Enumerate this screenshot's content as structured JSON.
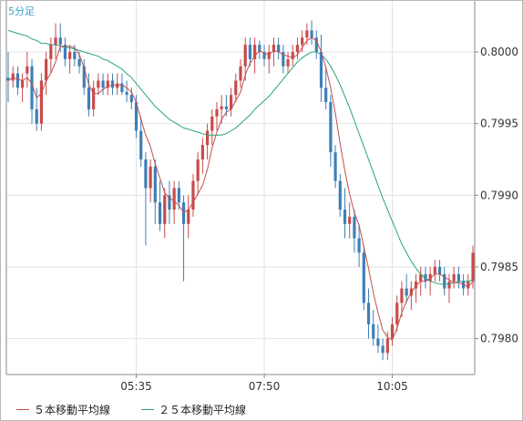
{
  "timeframe_label": "5分足",
  "legend": [
    {
      "label": "５本移動平均線",
      "color": "#c44e4e"
    },
    {
      "label": "２５本移動平均線",
      "color": "#2aa37a"
    }
  ],
  "colors": {
    "up": "#c84b4b",
    "down": "#3d7fb8",
    "grid": "#e2e2e2",
    "axis": "#888888"
  },
  "chart_data": {
    "type": "candlestick",
    "y_ticks": [
      "0.8000",
      "0.7995",
      "0.7990",
      "0.7985",
      "0.7980"
    ],
    "x_ticks": [
      "05:35",
      "07:50",
      "10:05"
    ],
    "ylim": [
      0.79773,
      0.8005
    ],
    "grid": true,
    "candles": [
      [
        0.79982,
        0.8,
        0.79965,
        0.7998
      ],
      [
        0.7998,
        0.7999,
        0.79975,
        0.79985
      ],
      [
        0.79985,
        0.7999,
        0.7997,
        0.79975
      ],
      [
        0.79975,
        0.79985,
        0.79965,
        0.7998
      ],
      [
        0.79985,
        0.8,
        0.79975,
        0.7999
      ],
      [
        0.7999,
        0.79995,
        0.7995,
        0.7996
      ],
      [
        0.7996,
        0.79975,
        0.79945,
        0.7995
      ],
      [
        0.7995,
        0.79985,
        0.79945,
        0.7998
      ],
      [
        0.7998,
        0.8,
        0.7997,
        0.79995
      ],
      [
        0.79995,
        0.8001,
        0.79985,
        0.80005
      ],
      [
        0.80005,
        0.8002,
        0.79995,
        0.8001
      ],
      [
        0.8001,
        0.8002,
        0.8,
        0.80005
      ],
      [
        0.80005,
        0.8001,
        0.7999,
        0.79995
      ],
      [
        0.79995,
        0.80005,
        0.79985,
        0.8
      ],
      [
        0.8,
        0.80005,
        0.7999,
        0.79995
      ],
      [
        0.79995,
        0.8,
        0.79985,
        0.7999
      ],
      [
        0.7999,
        0.79995,
        0.7997,
        0.79975
      ],
      [
        0.79975,
        0.79985,
        0.79955,
        0.7996
      ],
      [
        0.7996,
        0.7998,
        0.79955,
        0.79975
      ],
      [
        0.79975,
        0.79985,
        0.7997,
        0.7998
      ],
      [
        0.7998,
        0.79985,
        0.7997,
        0.79975
      ],
      [
        0.79975,
        0.79985,
        0.7997,
        0.7998
      ],
      [
        0.7998,
        0.79985,
        0.7997,
        0.79975
      ],
      [
        0.79975,
        0.79985,
        0.7997,
        0.79978
      ],
      [
        0.79978,
        0.79985,
        0.7997,
        0.79972
      ],
      [
        0.79972,
        0.7998,
        0.79965,
        0.7997
      ],
      [
        0.7997,
        0.79975,
        0.7996,
        0.79965
      ],
      [
        0.79965,
        0.7997,
        0.7994,
        0.79945
      ],
      [
        0.79945,
        0.79955,
        0.7992,
        0.79925
      ],
      [
        0.79925,
        0.7993,
        0.79865,
        0.79905
      ],
      [
        0.79905,
        0.79925,
        0.79895,
        0.7992
      ],
      [
        0.7992,
        0.79925,
        0.7988,
        0.79895
      ],
      [
        0.79895,
        0.7991,
        0.79875,
        0.7988
      ],
      [
        0.7988,
        0.79905,
        0.7987,
        0.799
      ],
      [
        0.799,
        0.7991,
        0.7988,
        0.7989
      ],
      [
        0.7989,
        0.7991,
        0.7988,
        0.79905
      ],
      [
        0.79905,
        0.7991,
        0.7989,
        0.79895
      ],
      [
        0.79895,
        0.799,
        0.7984,
        0.7988
      ],
      [
        0.7988,
        0.799,
        0.7987,
        0.7989
      ],
      [
        0.7989,
        0.79915,
        0.79885,
        0.7991
      ],
      [
        0.7991,
        0.7993,
        0.799,
        0.79925
      ],
      [
        0.79925,
        0.7994,
        0.79915,
        0.79935
      ],
      [
        0.79935,
        0.7995,
        0.79925,
        0.79945
      ],
      [
        0.79945,
        0.7996,
        0.79935,
        0.79955
      ],
      [
        0.79955,
        0.79965,
        0.79945,
        0.7996
      ],
      [
        0.7996,
        0.7997,
        0.7995,
        0.79962
      ],
      [
        0.79962,
        0.7997,
        0.79955,
        0.7996
      ],
      [
        0.7996,
        0.79975,
        0.79955,
        0.7997
      ],
      [
        0.7997,
        0.79985,
        0.79965,
        0.7998
      ],
      [
        0.7998,
        0.79995,
        0.79975,
        0.7999
      ],
      [
        0.7999,
        0.8001,
        0.7998,
        0.80005
      ],
      [
        0.80005,
        0.8001,
        0.7999,
        0.79995
      ],
      [
        0.79995,
        0.8001,
        0.79985,
        0.80005
      ],
      [
        0.80005,
        0.80008,
        0.79995,
        0.8
      ],
      [
        0.8,
        0.80005,
        0.7999,
        0.79995
      ],
      [
        0.79995,
        0.80005,
        0.79985,
        0.8
      ],
      [
        0.8,
        0.8001,
        0.7999,
        0.80005
      ],
      [
        0.80005,
        0.8001,
        0.79995,
        0.8
      ],
      [
        0.8,
        0.80005,
        0.79985,
        0.7999
      ],
      [
        0.7999,
        0.8,
        0.79985,
        0.79995
      ],
      [
        0.79995,
        0.80005,
        0.7999,
        0.8
      ],
      [
        0.8,
        0.8001,
        0.79995,
        0.80005
      ],
      [
        0.80005,
        0.80015,
        0.8,
        0.8001
      ],
      [
        0.8001,
        0.8002,
        0.80005,
        0.80015
      ],
      [
        0.80015,
        0.80022,
        0.80005,
        0.8001
      ],
      [
        0.8001,
        0.80015,
        0.79995,
        0.8
      ],
      [
        0.8,
        0.80012,
        0.79965,
        0.79975
      ],
      [
        0.79975,
        0.7999,
        0.7996,
        0.79965
      ],
      [
        0.79965,
        0.7997,
        0.7992,
        0.7993
      ],
      [
        0.7993,
        0.79935,
        0.79905,
        0.7991
      ],
      [
        0.7991,
        0.79915,
        0.79885,
        0.7989
      ],
      [
        0.7989,
        0.79905,
        0.7987,
        0.7988
      ],
      [
        0.7988,
        0.79895,
        0.7987,
        0.79885
      ],
      [
        0.79885,
        0.7989,
        0.7986,
        0.7987
      ],
      [
        0.7987,
        0.7988,
        0.7985,
        0.7986
      ],
      [
        0.7986,
        0.79865,
        0.7982,
        0.79825
      ],
      [
        0.79825,
        0.79835,
        0.798,
        0.7981
      ],
      [
        0.7981,
        0.7982,
        0.79795,
        0.798
      ],
      [
        0.798,
        0.7981,
        0.7979,
        0.79795
      ],
      [
        0.79795,
        0.798,
        0.79785,
        0.7979
      ],
      [
        0.7979,
        0.79805,
        0.79785,
        0.798
      ],
      [
        0.798,
        0.79815,
        0.79795,
        0.7981
      ],
      [
        0.7981,
        0.7983,
        0.79805,
        0.79825
      ],
      [
        0.79825,
        0.7984,
        0.79815,
        0.79835
      ],
      [
        0.79835,
        0.79845,
        0.79825,
        0.7983
      ],
      [
        0.7983,
        0.7984,
        0.7982,
        0.79835
      ],
      [
        0.79835,
        0.79845,
        0.79825,
        0.7984
      ],
      [
        0.7984,
        0.7985,
        0.7983,
        0.79845
      ],
      [
        0.79845,
        0.7985,
        0.79835,
        0.7984
      ],
      [
        0.7984,
        0.7985,
        0.7983,
        0.79845
      ],
      [
        0.79845,
        0.79855,
        0.7984,
        0.7985
      ],
      [
        0.7985,
        0.79855,
        0.7984,
        0.79845
      ],
      [
        0.79845,
        0.7985,
        0.7983,
        0.79835
      ],
      [
        0.79835,
        0.79845,
        0.79825,
        0.7984
      ],
      [
        0.7984,
        0.7985,
        0.79835,
        0.79845
      ],
      [
        0.79845,
        0.7985,
        0.79835,
        0.7984
      ],
      [
        0.7984,
        0.79845,
        0.7983,
        0.79835
      ],
      [
        0.79835,
        0.79845,
        0.7983,
        0.7984
      ],
      [
        0.7984,
        0.79865,
        0.79835,
        0.7986
      ]
    ],
    "ma5": [
      0.7998,
      0.79982,
      0.79981,
      0.7998,
      0.79982,
      0.79978,
      0.79968,
      0.79971,
      0.7998,
      0.79985,
      0.79993,
      0.80004,
      0.80004,
      0.80004,
      0.80003,
      0.79998,
      0.79989,
      0.79977,
      0.79971,
      0.79971,
      0.79974,
      0.79976,
      0.79977,
      0.79977,
      0.79977,
      0.79975,
      0.79972,
      0.79965,
      0.79953,
      0.79942,
      0.79934,
      0.79922,
      0.79912,
      0.79902,
      0.79898,
      0.79896,
      0.79893,
      0.79888,
      0.7989,
      0.79895,
      0.79901,
      0.79907,
      0.79918,
      0.79933,
      0.79944,
      0.79953,
      0.79958,
      0.7996,
      0.79966,
      0.79972,
      0.79984,
      0.79992,
      0.79997,
      0.80001,
      0.79999,
      0.79998,
      0.80001,
      0.8,
      0.79998,
      0.79997,
      0.79996,
      0.79998,
      0.80003,
      0.80008,
      0.8001,
      0.80008,
      0.8,
      0.79989,
      0.79975,
      0.79957,
      0.79936,
      0.79917,
      0.79901,
      0.79888,
      0.79879,
      0.79864,
      0.79849,
      0.79832,
      0.79818,
      0.79806,
      0.79801,
      0.79799,
      0.79807,
      0.79818,
      0.79826,
      0.79832,
      0.79837,
      0.7984,
      0.7984,
      0.79842,
      0.79845,
      0.79845,
      0.79843,
      0.79841,
      0.79839,
      0.79839,
      0.79838,
      0.79836,
      0.7984
    ],
    "ma25": [
      0.80015,
      0.80014,
      0.80013,
      0.80012,
      0.80011,
      0.80009,
      0.80008,
      0.80006,
      0.80006,
      0.80005,
      0.80005,
      0.80004,
      0.80003,
      0.80003,
      0.80002,
      0.80001,
      0.8,
      0.79999,
      0.79998,
      0.79997,
      0.79995,
      0.79994,
      0.79992,
      0.7999,
      0.79988,
      0.79985,
      0.79982,
      0.79978,
      0.79974,
      0.7997,
      0.79966,
      0.79962,
      0.79959,
      0.79956,
      0.79953,
      0.79951,
      0.79949,
      0.79947,
      0.79946,
      0.79945,
      0.79944,
      0.79943,
      0.79942,
      0.79942,
      0.79942,
      0.79942,
      0.79943,
      0.79945,
      0.79947,
      0.7995,
      0.79953,
      0.79956,
      0.7996,
      0.79963,
      0.79966,
      0.79969,
      0.79973,
      0.79977,
      0.79981,
      0.79985,
      0.79989,
      0.79993,
      0.79996,
      0.79998,
      0.8,
      0.8,
      0.79998,
      0.79995,
      0.7999,
      0.79984,
      0.79977,
      0.79969,
      0.79961,
      0.79952,
      0.79943,
      0.79934,
      0.79925,
      0.79916,
      0.79907,
      0.79898,
      0.7989,
      0.79882,
      0.79874,
      0.79866,
      0.7986,
      0.79854,
      0.79849,
      0.79845,
      0.79842,
      0.7984,
      0.79839,
      0.79838,
      0.79838,
      0.79838,
      0.79839,
      0.7984,
      0.7984,
      0.7984,
      0.79841
    ]
  }
}
